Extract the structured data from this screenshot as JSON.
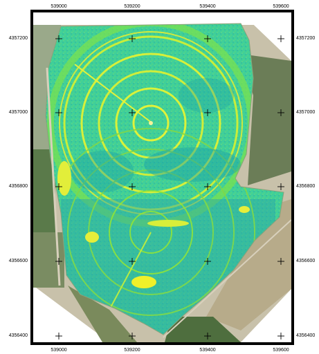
{
  "map": {
    "type": "georeferenced-raster",
    "x_ticks": [
      "539000",
      "539200",
      "539400",
      "539600"
    ],
    "y_ticks": [
      "4357200",
      "4357000",
      "4356800",
      "4356600",
      "4356400"
    ],
    "colors": {
      "frame": "#000000",
      "vegetation_high": "#2fd29a",
      "vegetation_mid": "#5fe06a",
      "vegetation_low": "#f0f02a",
      "vegetation_dense": "#1aa0a8",
      "background_fields": "#b9b29c"
    },
    "grid_marker": "plus-sign"
  }
}
